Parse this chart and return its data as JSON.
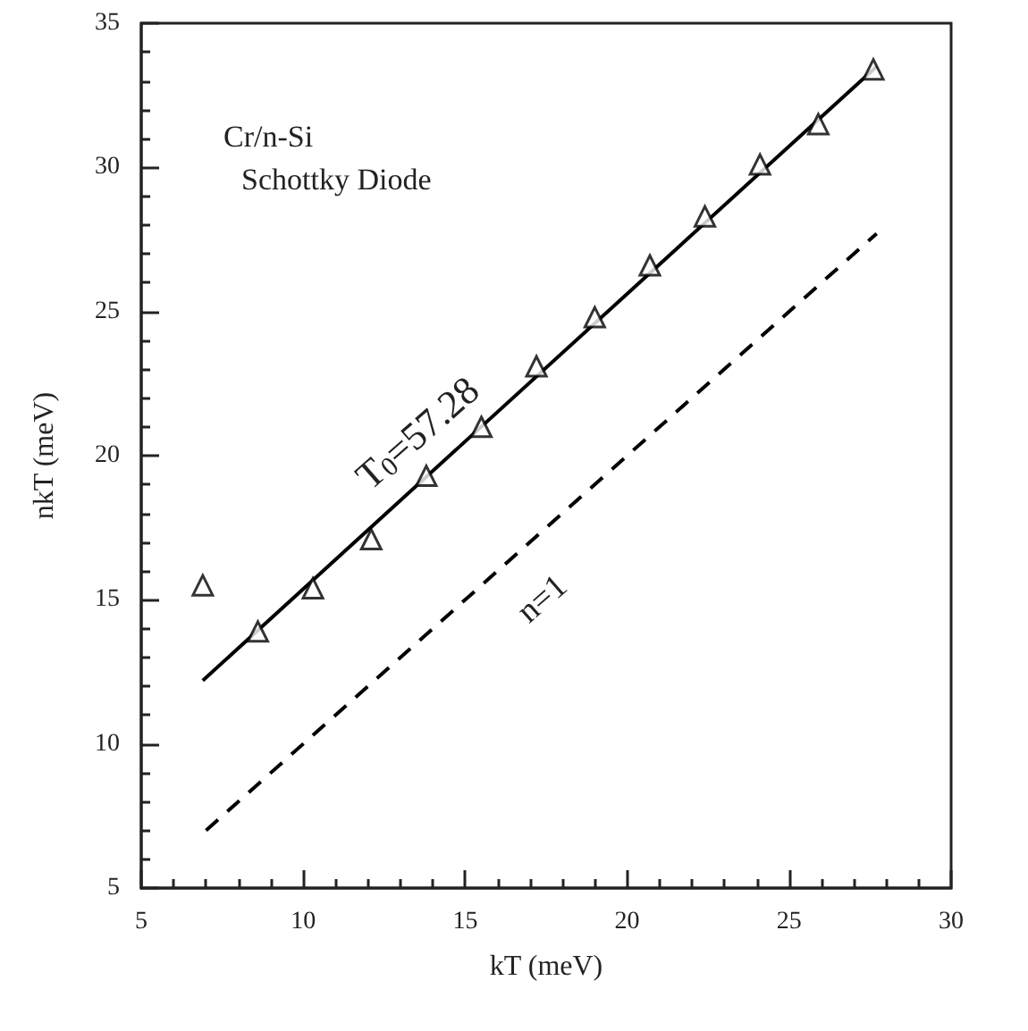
{
  "chart_data": {
    "type": "scatter",
    "xlabel": "kT (meV)",
    "ylabel": "nkT (meV)",
    "xlim": [
      5,
      30
    ],
    "xticks": [
      5,
      10,
      15,
      20,
      25,
      30
    ],
    "ylim": [
      5,
      35
    ],
    "yticks": [
      5,
      10,
      15,
      20,
      25,
      30,
      35
    ],
    "grid": false,
    "annotations": [
      "Cr/n-Si",
      "Schottky Diode",
      "T$_{0}$=57.28",
      "n=1"
    ],
    "series": [
      {
        "marker": "triangle",
        "color": "#000000",
        "x": [
          6.9,
          8.6,
          10.3,
          12.1,
          13.8,
          15.5,
          17.2,
          19.0,
          20.7,
          22.4,
          24.1,
          25.9,
          27.6
        ],
        "values": [
          15.5,
          13.9,
          15.4,
          17.1,
          19.3,
          21.0,
          23.1,
          24.8,
          26.6,
          28.3,
          30.1,
          31.5,
          33.4
        ]
      },
      {
        "type": "line",
        "marker": "none",
        "line_style": "solid",
        "color": "#000000",
        "x": [
          6.9,
          27.7
        ],
        "values": [
          12.2,
          33.5
        ]
      },
      {
        "type": "line",
        "marker": "none",
        "line_style": "dashed",
        "color": "#000000",
        "x": [
          7,
          27.7
        ],
        "values": [
          7,
          27.7
        ]
      }
    ]
  }
}
